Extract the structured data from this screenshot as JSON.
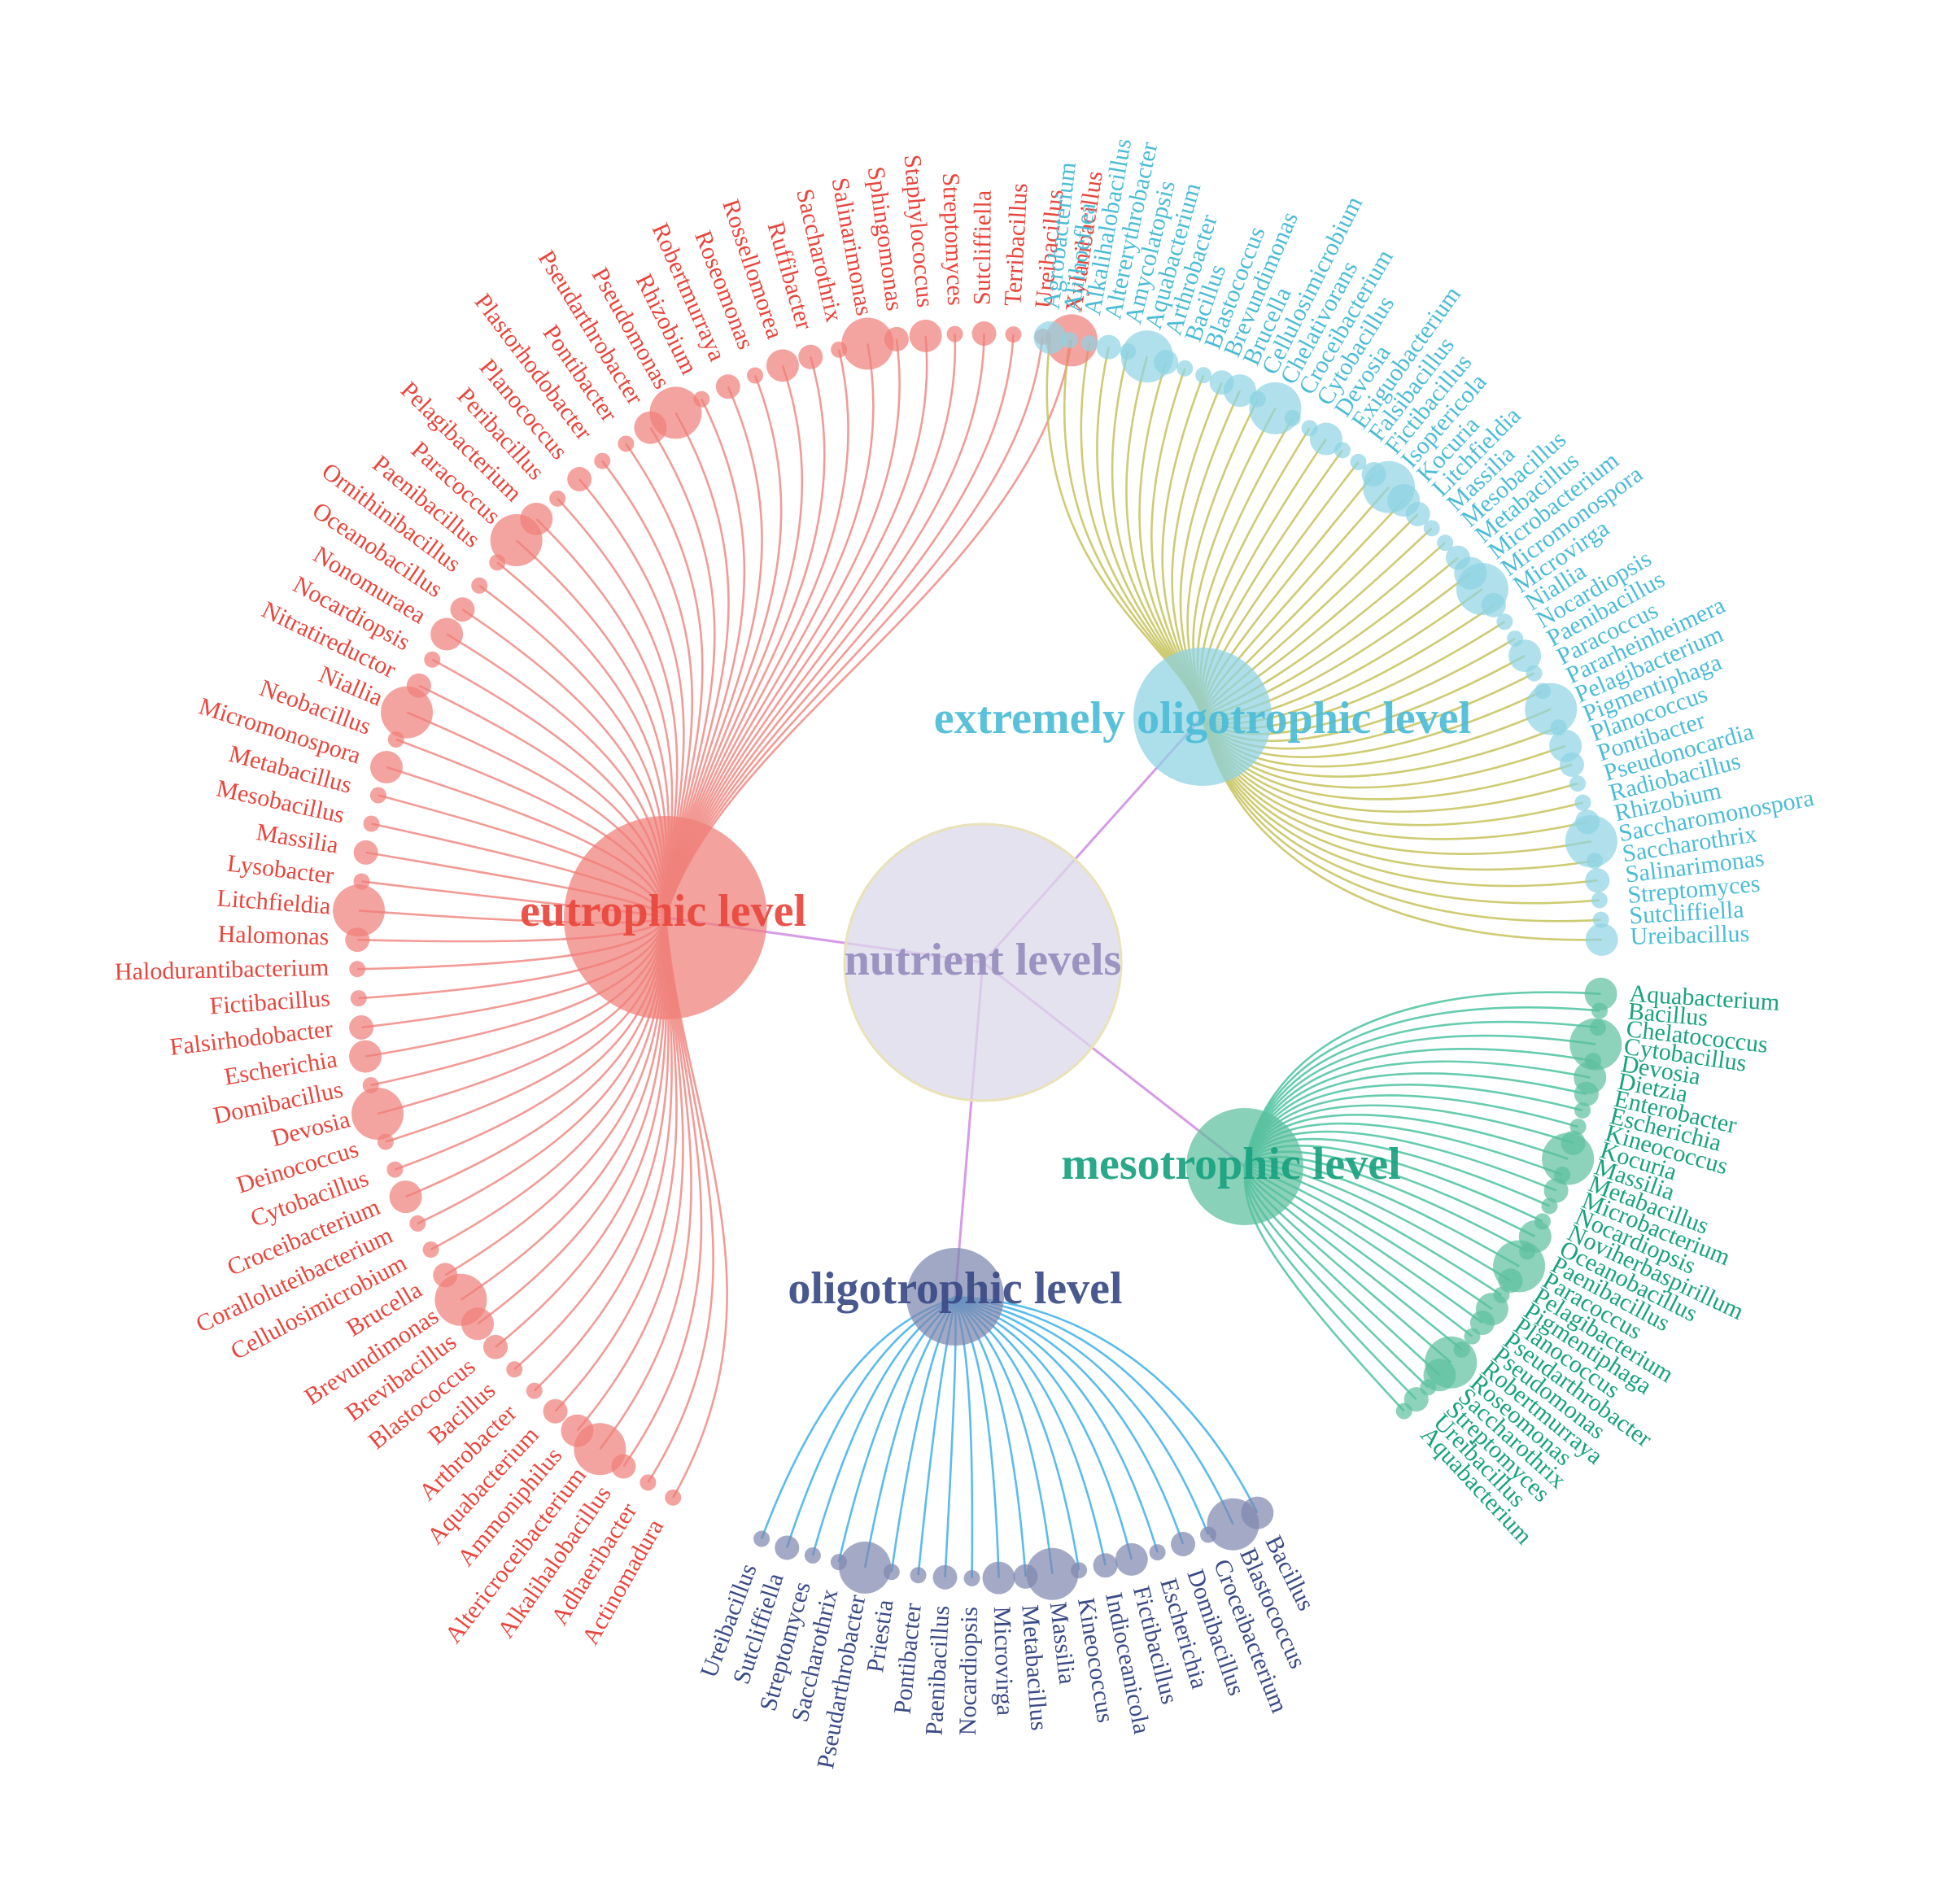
{
  "root": {
    "label": "nutrient levels",
    "color": "#9b93c0",
    "fill": "#dcd8ea"
  },
  "groups": [
    {
      "id": "eutrophic",
      "label": "eutrophic level",
      "color": "#e8453c",
      "fill": "#f07e78",
      "leaves": [
        "Xylanibacillus",
        "Ureibacillus",
        "Terribacillus",
        "Sutcliffiella",
        "Streptomyces",
        "Staphylococcus",
        "Sphingomonas",
        "Salinarimonas",
        "Saccharothrix",
        "Ruffibacter",
        "Rossellomorea",
        "Roseomonas",
        "Robertmurraya",
        "Rhizobium",
        "Pseudomonas",
        "Pseudarthrobacter",
        "Pontibacter",
        "Plastorhodobacter",
        "Planococcus",
        "Peribacillus",
        "Pelagibacterium",
        "Paracoccus",
        "Paenibacillus",
        "Ornithinibacillus",
        "Oceanobacillus",
        "Nonomuraea",
        "Nocardiopsis",
        "Nitratireductor",
        "Niallia",
        "Neobacillus",
        "Micromonospora",
        "Metabacillus",
        "Mesobacillus",
        "Massilia",
        "Lysobacter",
        "Litchfieldia",
        "Halomonas",
        "Halodurantibacterium",
        "Fictibacillus",
        "Falsirhodobacter",
        "Escherichia",
        "Domibacillus",
        "Devosia",
        "Deinococcus",
        "Cytobacillus",
        "Croceibacterium",
        "Coralloluteibacterium",
        "Cellulosimicrobium",
        "Brucella",
        "Brevundimonas",
        "Brevibacillus",
        "Blastococcus",
        "Bacillus",
        "Arthrobacter",
        "Aquabacterium",
        "Ammoniphilus",
        "Altericroceibacterium",
        "Alkalihalobacillus",
        "Adhaeribacter",
        "Actinomadura"
      ]
    },
    {
      "id": "extremely-oligotrophic",
      "label": "extremely oligotrophic level",
      "color": "#4bbcd6",
      "fill": "#8dd3e3",
      "leaves": [
        "Agrobacterium",
        "Aliihoeflea",
        "Alkalihalobacillus",
        "Altererythrobacter",
        "Amycolatopsis",
        "Aquabacterium",
        "Arthrobacter",
        "Bacillus",
        "Blastococcus",
        "Brevundimonas",
        "Brucella",
        "Cellulosimicrobium",
        "Chelativorans",
        "Croceibacterium",
        "Cytobacillus",
        "Devosia",
        "Exiguobacterium",
        "Falsibacillus",
        "Fictibacillus",
        "Isoptericola",
        "Kocuria",
        "Litchfieldia",
        "Massilia",
        "Mesobacillus",
        "Metabacillus",
        "Microbacterium",
        "Micromonospora",
        "Microvirga",
        "Niallia",
        "Nocardiopsis",
        "Paenibacillus",
        "Paracoccus",
        "Pararheinheimera",
        "Pelagibacterium",
        "Pigmentiphaga",
        "Planococcus",
        "Pontibacter",
        "Pseudonocardia",
        "Radiobacillus",
        "Rhizobium",
        "Saccharomonospora",
        "Saccharothrix",
        "Salinarimonas",
        "Streptomyces",
        "Sutcliffiella",
        "Ureibacillus"
      ]
    },
    {
      "id": "mesotrophic",
      "label": "mesotrophic level",
      "color": "#18a27f",
      "fill": "#5cbf9e",
      "leaves": [
        "Aquabacterium",
        "Bacillus",
        "Chelatococcus",
        "Cytobacillus",
        "Devosia",
        "Dietzia",
        "Enterobacter",
        "Escherichia",
        "Kineococcus",
        "Kocuria",
        "Massilia",
        "Metabacillus",
        "Microbacterium",
        "Nocardiopsis",
        "Noviherbaspirillum",
        "Oceanobacillus",
        "Paenibacillus",
        "Paracoccus",
        "Pelagibacterium",
        "Pigmentiphaga",
        "Planococcus",
        "Pseudarthrobacter",
        "Pseudomonas",
        "Robertmurraya",
        "Roseomonas",
        "Saccharothrix",
        "Streptomyces",
        "Ureibacillus",
        "Aquabacterium"
      ]
    },
    {
      "id": "oligotrophic",
      "label": "oligotrophic level",
      "color": "#3a4a86",
      "fill": "#7d86ae",
      "leaves": [
        "Bacillus",
        "Blastococcus",
        "Croceibacterium",
        "Domibacillus",
        "Escherichia",
        "Fictibacillus",
        "Indioceanicola",
        "Kineococcus",
        "Massilia",
        "Metabacillus",
        "Microvirga",
        "Nocardiopsis",
        "Paenibacillus",
        "Pontibacter",
        "Priestia",
        "Pseudarthrobacter",
        "Saccharothrix",
        "Streptomyces",
        "Sutcliffiella",
        "Ureibacillus"
      ]
    }
  ]
}
